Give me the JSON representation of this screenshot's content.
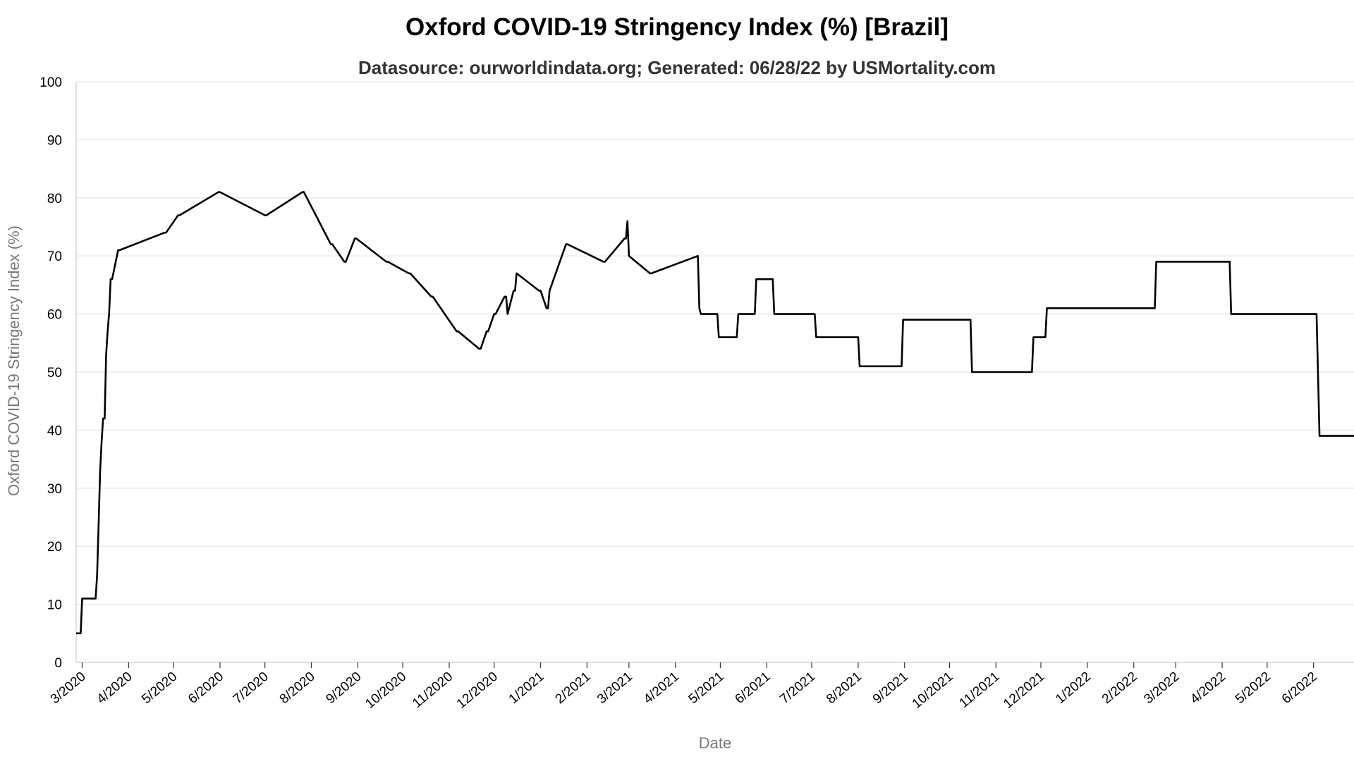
{
  "chart_data": {
    "type": "line",
    "title": "Oxford COVID-19 Stringency Index (%) [Brazil]",
    "subtitle": "Datasource: ourworldindata.org; Generated: 06/28/22 by USMortality.com",
    "xlabel": "Date",
    "ylabel": "Oxford COVID-19 Stringency Index (%)",
    "ylim": [
      0,
      100
    ],
    "yticks": [
      0,
      10,
      20,
      30,
      40,
      50,
      60,
      70,
      80,
      90,
      100
    ],
    "xlim": [
      "2020-02-26",
      "2022-06-28"
    ],
    "grid": true,
    "x_ticks": [
      {
        "label": "3/2020",
        "date": "2020-03-01"
      },
      {
        "label": "4/2020",
        "date": "2020-04-01"
      },
      {
        "label": "5/2020",
        "date": "2020-05-01"
      },
      {
        "label": "6/2020",
        "date": "2020-06-01"
      },
      {
        "label": "7/2020",
        "date": "2020-07-01"
      },
      {
        "label": "8/2020",
        "date": "2020-08-01"
      },
      {
        "label": "9/2020",
        "date": "2020-09-01"
      },
      {
        "label": "10/2020",
        "date": "2020-10-01"
      },
      {
        "label": "11/2020",
        "date": "2020-11-01"
      },
      {
        "label": "12/2020",
        "date": "2020-12-01"
      },
      {
        "label": "1/2021",
        "date": "2021-01-01"
      },
      {
        "label": "2/2021",
        "date": "2021-02-01"
      },
      {
        "label": "3/2021",
        "date": "2021-03-01"
      },
      {
        "label": "4/2021",
        "date": "2021-04-01"
      },
      {
        "label": "5/2021",
        "date": "2021-05-01"
      },
      {
        "label": "6/2021",
        "date": "2021-06-01"
      },
      {
        "label": "7/2021",
        "date": "2021-07-01"
      },
      {
        "label": "8/2021",
        "date": "2021-08-01"
      },
      {
        "label": "9/2021",
        "date": "2021-09-01"
      },
      {
        "label": "10/2021",
        "date": "2021-10-01"
      },
      {
        "label": "11/2021",
        "date": "2021-11-01"
      },
      {
        "label": "12/2021",
        "date": "2021-12-01"
      },
      {
        "label": "1/2022",
        "date": "2022-01-01"
      },
      {
        "label": "2/2022",
        "date": "2022-02-01"
      },
      {
        "label": "3/2022",
        "date": "2022-03-01"
      },
      {
        "label": "4/2022",
        "date": "2022-04-01"
      },
      {
        "label": "5/2022",
        "date": "2022-05-01"
      },
      {
        "label": "6/2022",
        "date": "2022-06-01"
      }
    ],
    "series": [
      {
        "color": "#000000",
        "x": [
          "2020-02-26",
          "2020-02-29",
          "2020-03-01",
          "2020-03-10",
          "2020-03-11",
          "2020-03-12",
          "2020-03-13",
          "2020-03-14",
          "2020-03-15",
          "2020-03-16",
          "2020-03-17",
          "2020-03-18",
          "2020-03-19",
          "2020-03-20",
          "2020-03-21",
          "2020-03-25",
          "2020-03-26",
          "2020-04-25",
          "2020-04-26",
          "2020-05-04",
          "2020-05-05",
          "2020-05-31",
          "2020-06-01",
          "2020-07-01",
          "2020-07-02",
          "2020-07-26",
          "2020-07-27",
          "2020-08-14",
          "2020-08-15",
          "2020-08-23",
          "2020-08-24",
          "2020-08-30",
          "2020-08-31",
          "2020-09-20",
          "2020-09-21",
          "2020-10-05",
          "2020-10-06",
          "2020-10-20",
          "2020-10-21",
          "2020-11-06",
          "2020-11-07",
          "2020-11-21",
          "2020-11-22",
          "2020-11-26",
          "2020-11-27",
          "2020-12-01",
          "2020-12-02",
          "2020-12-08",
          "2020-12-09",
          "2020-12-10",
          "2020-12-14",
          "2020-12-15",
          "2020-12-16",
          "2020-12-31",
          "2021-01-01",
          "2021-01-05",
          "2021-01-06",
          "2021-01-07",
          "2021-01-18",
          "2021-01-19",
          "2021-02-12",
          "2021-02-13",
          "2021-02-26",
          "2021-02-27",
          "2021-02-28",
          "2021-03-01",
          "2021-03-15",
          "2021-03-16",
          "2021-04-16",
          "2021-04-17",
          "2021-04-18",
          "2021-04-29",
          "2021-04-30",
          "2021-05-12",
          "2021-05-13",
          "2021-05-24",
          "2021-05-25",
          "2021-06-05",
          "2021-06-06",
          "2021-07-03",
          "2021-07-04",
          "2021-08-01",
          "2021-08-02",
          "2021-08-30",
          "2021-08-31",
          "2021-10-15",
          "2021-10-16",
          "2021-11-25",
          "2021-11-26",
          "2021-12-04",
          "2021-12-05",
          "2022-02-15",
          "2022-02-16",
          "2022-04-06",
          "2022-04-07",
          "2022-06-03",
          "2022-06-05",
          "2022-06-28"
        ],
        "y": [
          5,
          5,
          11,
          11,
          15,
          24,
          33,
          38,
          42,
          42,
          53,
          57,
          60,
          66,
          66,
          71,
          71,
          74,
          74,
          77,
          77,
          81,
          81,
          77,
          77,
          81,
          81,
          72,
          72,
          69,
          69,
          73,
          73,
          69,
          69,
          67,
          67,
          63,
          63,
          57,
          57,
          54,
          54,
          57,
          57,
          60,
          60,
          63,
          63,
          60,
          64,
          64,
          67,
          64,
          64,
          61,
          61,
          64,
          72,
          72,
          69,
          69,
          73,
          73,
          76,
          70,
          67,
          67,
          70,
          61,
          60,
          60,
          56,
          56,
          60,
          60,
          66,
          66,
          60,
          60,
          56,
          56,
          51,
          51,
          59,
          59,
          50,
          50,
          56,
          56,
          61,
          61,
          69,
          69,
          60,
          60,
          39,
          39
        ]
      }
    ]
  }
}
